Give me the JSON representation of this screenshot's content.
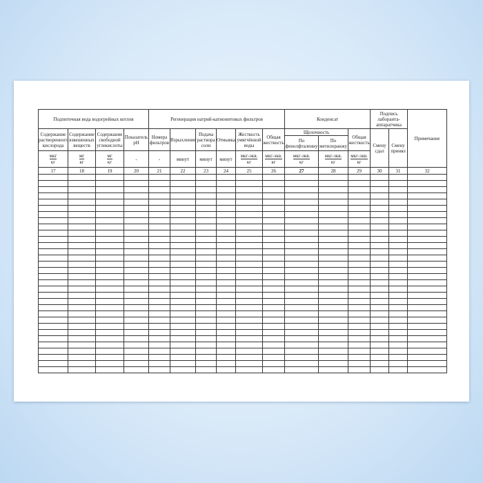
{
  "groups": {
    "feed_water": "Подпиточная вода водогрейных котлов",
    "regeneration": "Регенерация натрий-катионитовых фильтров",
    "condensate": "Конденсат",
    "signature": "Подпись лаборанта-аппаратчика",
    "note": "Примечание",
    "alkalinity": "Щелочность"
  },
  "columns": [
    {
      "label": "Содержание растворенного кислорода",
      "unit_num": "мкг",
      "unit_den": "кг",
      "number": "17"
    },
    {
      "label": "Содержание взвешенных веществ",
      "unit_num": "мг",
      "unit_den": "кг",
      "number": "18"
    },
    {
      "label": "Содержание свободной углекислоты",
      "unit_num": "мг",
      "unit_den": "кг",
      "number": "19"
    },
    {
      "label": "Показатель pH",
      "unit": "-",
      "number": "20"
    },
    {
      "label": "Номера фильтров",
      "unit": "-",
      "number": "21"
    },
    {
      "label": "Взрыхление",
      "unit": "минут",
      "number": "22"
    },
    {
      "label": "Подача раствора соли",
      "unit": "минут",
      "number": "23"
    },
    {
      "label": "Отмывка",
      "unit": "минут",
      "number": "24"
    },
    {
      "label": "Жесткость умягчённой воды",
      "unit_num": "мкг-экв.",
      "unit_den": "кг",
      "number": "25"
    },
    {
      "label": "Общая жесткость",
      "unit_num": "мкг-экв.",
      "unit_den": "кг",
      "number": "26"
    },
    {
      "label": "По фенолфталеину",
      "unit_num": "мкг-экв.",
      "unit_den": "кг",
      "number": "27"
    },
    {
      "label": "По метилоранжу",
      "unit_num": "мкг-экв.",
      "unit_den": "кг",
      "number": "28"
    },
    {
      "label": "Общая жесткость",
      "unit_num": "мкг-экв.",
      "unit_den": "кг",
      "number": "29"
    },
    {
      "label": "Смену сдал",
      "number": "30"
    },
    {
      "label": "Смену принял",
      "number": "31"
    },
    {
      "label": "Примечание",
      "number": "32"
    }
  ]
}
